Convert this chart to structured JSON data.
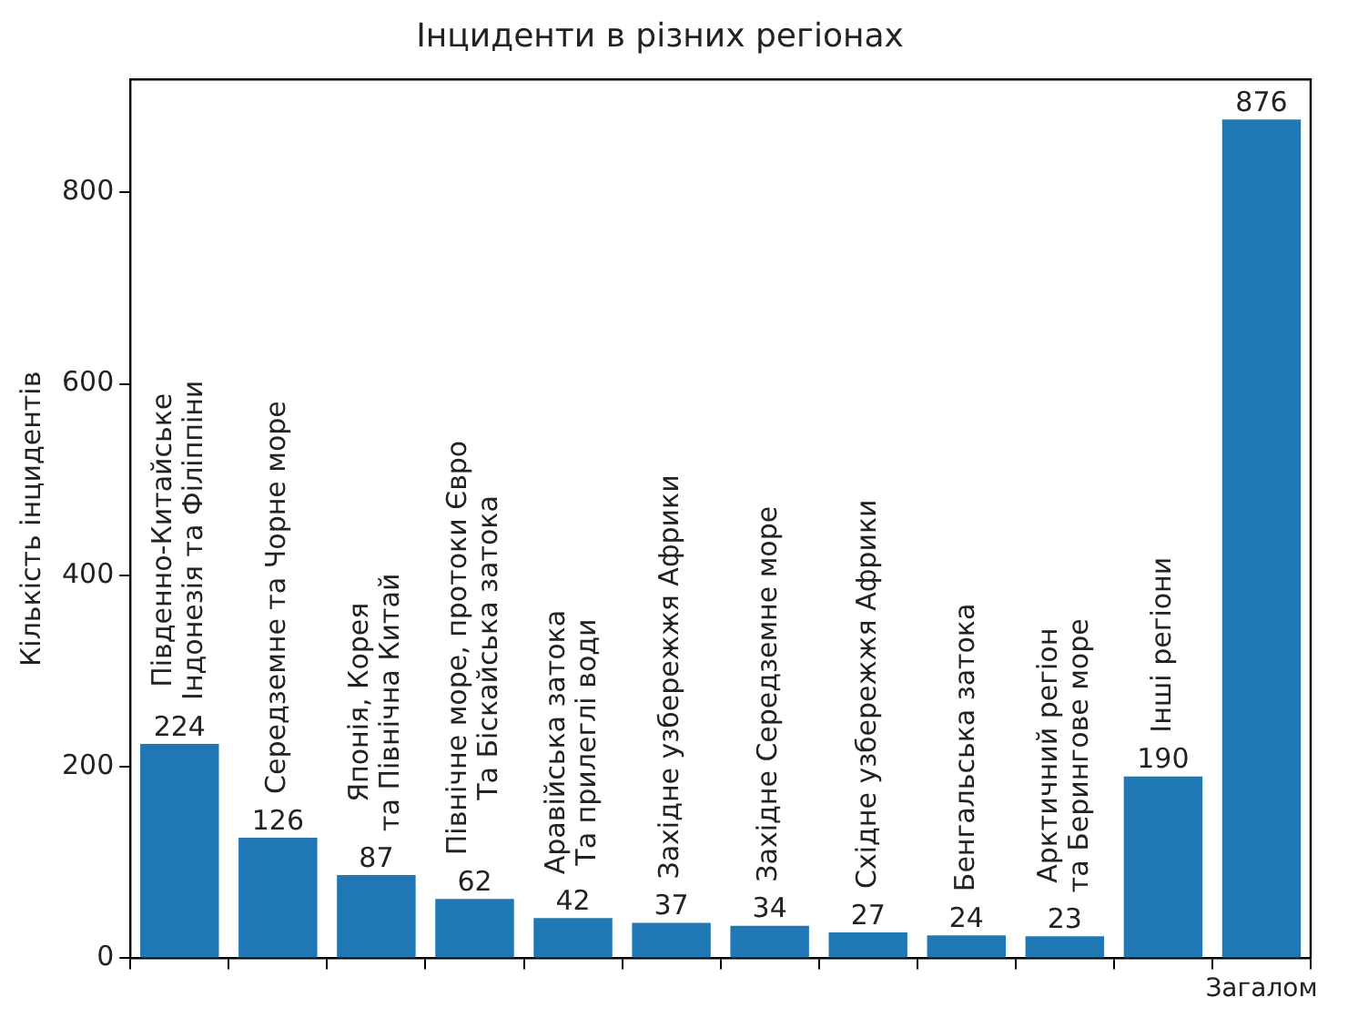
{
  "chart_data": {
    "type": "bar",
    "title": "Інциденти в різних регіонах",
    "ylabel": "Кількість інцидентів",
    "categories": [
      null,
      null,
      null,
      null,
      null,
      null,
      null,
      null,
      null,
      null,
      null,
      "Загалом"
    ],
    "values": [
      224,
      126,
      87,
      62,
      42,
      37,
      34,
      27,
      24,
      23,
      190,
      876
    ],
    "color": "#1f77b4",
    "ylim": [
      0,
      918
    ],
    "yticks": [
      0,
      200,
      400,
      600,
      800
    ],
    "grid": false,
    "legend": false,
    "data_labels": true,
    "annotations": [
      "Південно-Китайське\nІндонезія та Філіппіни",
      "Середземне та Чорне море",
      "Японія, Корея\nта Північна Китай",
      "Північне море, протоки Євро\nТа Біскайська затока",
      "Аравійська затока\nТа прилеглі води",
      "Західне узбережжя Африки",
      "Західне Середземне море",
      "Східне узбережжя Африки",
      "Бенгальська затока",
      "Арктичний регіон\nта Берингове море",
      "Інші регіони"
    ]
  }
}
